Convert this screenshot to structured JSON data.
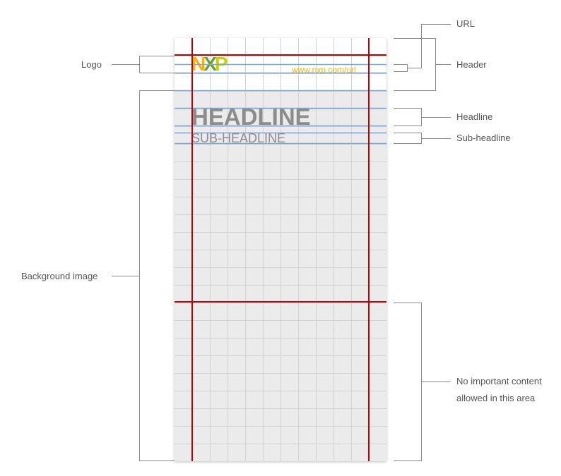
{
  "colors": {
    "guide_red": "#c00000",
    "guide_blue": "#7aa7d9",
    "grid": "#d2d2d2",
    "card_bg": "#ebebeb",
    "text_gray": "#8c8c8c",
    "label_gray": "#555555",
    "connector": "#888888",
    "url_orange": "#f9b500",
    "logo_orange": "#f9b500",
    "logo_green": "#6f9f35",
    "logo_lime": "#c9d200"
  },
  "card": {
    "logo": {
      "n": "N",
      "x": "X",
      "p": "P"
    },
    "url": "www.nxp.com/url",
    "headline": "HEADLINE",
    "subheadline": "SUB-HEADLINE"
  },
  "labels": {
    "logo": "Logo",
    "background_image": "Background image",
    "url": "URL",
    "header": "Header",
    "headline": "Headline",
    "subheadline": "Sub-headline",
    "no_content_line1": "No important content",
    "no_content_line2": "allowed in this area"
  }
}
